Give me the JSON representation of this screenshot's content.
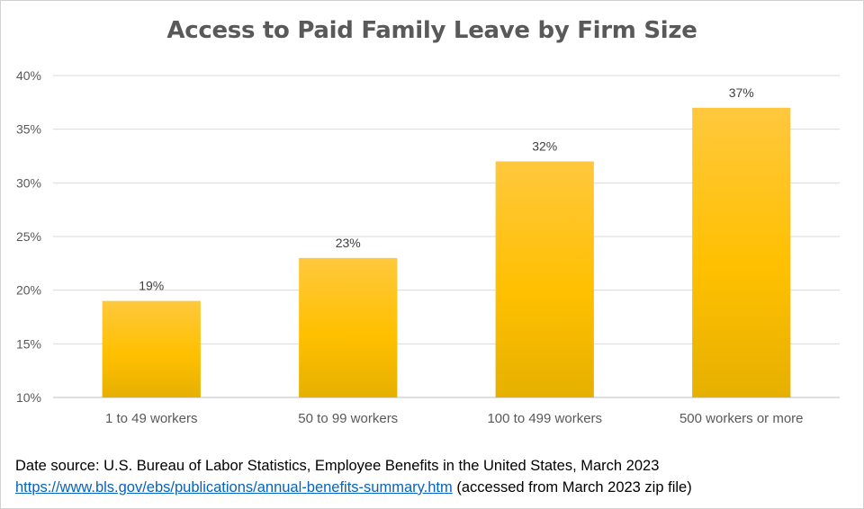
{
  "chart_data": {
    "type": "bar",
    "title": "Access to Paid Family Leave by Firm Size",
    "categories": [
      "1 to 49 workers",
      "50 to 99 workers",
      "100 to 499 workers",
      "500 workers or more"
    ],
    "values": [
      19,
      23,
      32,
      37
    ],
    "data_labels": [
      "19%",
      "23%",
      "32%",
      "37%"
    ],
    "ylim": [
      10,
      40
    ],
    "yticks": [
      10,
      15,
      20,
      25,
      30,
      35,
      40
    ],
    "ytick_labels": [
      "10%",
      "15%",
      "20%",
      "25%",
      "30%",
      "35%",
      "40%"
    ],
    "grid": true,
    "legend": "none",
    "bar_color_top": "#ffc83d",
    "bar_color_bottom": "#e6b000"
  },
  "source": {
    "line1": "Date source: U.S. Bureau of Labor Statistics, Employee Benefits in the United States, March 2023",
    "link_text": "https://www.bls.gov/ebs/publications/annual-benefits-summary.htm",
    "link_suffix": " (accessed from March 2023 zip file)"
  }
}
